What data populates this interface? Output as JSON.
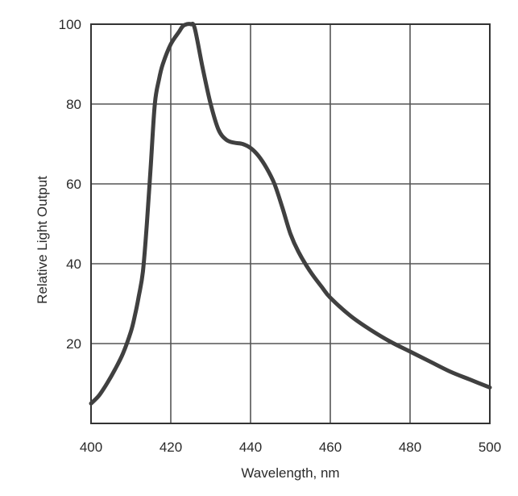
{
  "chart_data": {
    "type": "line",
    "title": "",
    "xlabel": "Wavelength, nm",
    "ylabel": "Relative Light Output",
    "xlim": [
      400,
      500
    ],
    "ylim": [
      0,
      100
    ],
    "x_ticks": [
      400,
      420,
      440,
      460,
      480,
      500
    ],
    "y_ticks": [
      20,
      40,
      60,
      80,
      100
    ],
    "grid": true,
    "legend": "none",
    "series": [
      {
        "color": "#404040",
        "x": [
          400,
          402,
          404,
          406,
          408,
          410,
          411,
          412,
          413,
          414,
          415,
          416,
          417,
          418,
          420,
          422,
          423,
          424,
          425,
          426,
          428,
          430,
          432,
          434,
          436,
          438,
          440,
          442,
          444,
          446,
          448,
          450,
          452,
          455,
          458,
          460,
          465,
          470,
          475,
          480,
          485,
          490,
          495,
          500
        ],
        "y": [
          5,
          7,
          10,
          13.5,
          17.5,
          23,
          27,
          32,
          38,
          50,
          65,
          80,
          86,
          90,
          95,
          98,
          99.5,
          100,
          100,
          99,
          89,
          80,
          73.5,
          71,
          70.3,
          70,
          69,
          67,
          64,
          60,
          54,
          47.5,
          43,
          38,
          34,
          31.5,
          27,
          23.5,
          20.5,
          18,
          15.5,
          13,
          11,
          9
        ]
      }
    ]
  }
}
